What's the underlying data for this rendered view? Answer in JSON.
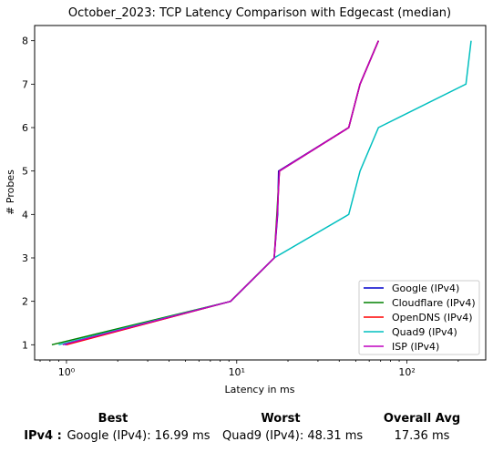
{
  "chart_data": {
    "type": "line",
    "title": "October_2023: TCP Latency Comparison with Edgecast (median)",
    "xlabel": "Latency in ms",
    "ylabel": "# Probes",
    "xscale": "log",
    "xlim": [
      0.65,
      290
    ],
    "ylim": [
      0.65,
      8.35
    ],
    "x_ticks": [
      1,
      10,
      100
    ],
    "x_tick_labels": [
      "10⁰",
      "10¹",
      "10²"
    ],
    "y_ticks": [
      1,
      2,
      3,
      4,
      5,
      6,
      7,
      8
    ],
    "grid": false,
    "legend_position": "lower-right",
    "series": [
      {
        "name": "Google (IPv4)",
        "color": "#0000cc",
        "x": [
          0.98,
          9.2,
          16.6,
          17.4,
          17.6,
          45.5,
          53,
          68
        ],
        "y": [
          1,
          2,
          3,
          4,
          5,
          6,
          7,
          8
        ]
      },
      {
        "name": "Cloudflare (IPv4)",
        "color": "#008000",
        "x": [
          0.82,
          9.2,
          16.6,
          17.2,
          17.8,
          45.5,
          53,
          68
        ],
        "y": [
          1,
          2,
          3,
          4,
          5,
          6,
          7,
          8
        ]
      },
      {
        "name": "OpenDNS (IPv4)",
        "color": "#ff0000",
        "x": [
          1.0,
          9.2,
          16.6,
          17.3,
          17.8,
          45.5,
          53,
          68
        ],
        "y": [
          1,
          2,
          3,
          4,
          5,
          6,
          7,
          8
        ]
      },
      {
        "name": "Quad9 (IPv4)",
        "color": "#00bfbf",
        "x": [
          0.9,
          9.2,
          16.6,
          45.5,
          53,
          68,
          222,
          238
        ],
        "y": [
          1,
          2,
          3,
          4,
          5,
          6,
          7,
          8
        ]
      },
      {
        "name": "ISP (IPv4)",
        "color": "#bf00bf",
        "x": [
          0.95,
          9.2,
          16.6,
          17.3,
          17.8,
          45.5,
          53,
          68
        ],
        "y": [
          1,
          2,
          3,
          4,
          5,
          6,
          7,
          8
        ]
      }
    ]
  },
  "summary": {
    "best_header": "Best",
    "worst_header": "Worst",
    "avg_header": "Overall Avg",
    "row_label": "IPv4 :",
    "best_value": "Google (IPv4): 16.99 ms",
    "worst_value": "Quad9 (IPv4): 48.31 ms",
    "avg_value": "17.36 ms"
  }
}
